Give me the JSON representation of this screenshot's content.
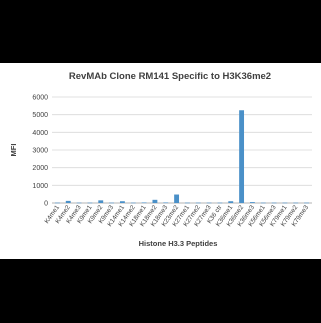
{
  "chart_data": {
    "type": "bar",
    "title": "RevMAb Clone RM141 Specific to H3K36me2",
    "xlabel": "Histone H3.3 Peptides",
    "ylabel": "MFI",
    "ylim": [
      0,
      6000
    ],
    "yticks": [
      0,
      1000,
      2000,
      3000,
      4000,
      5000,
      6000
    ],
    "grid": true,
    "legend": "none",
    "bar_color": "#4a90c8",
    "categories": [
      "K4me1",
      "K4me2",
      "K4me3",
      "K9me1",
      "K9me2",
      "K9me3",
      "K14me1",
      "K14me2",
      "K18me1",
      "K18me2",
      "K18me3",
      "K23me2",
      "K27me1",
      "K27me2",
      "K27me3",
      "K36 ctr",
      "K36me1",
      "K36me2",
      "K36me3",
      "K56me1",
      "K56me3",
      "K79me1",
      "K79me2",
      "K79me3"
    ],
    "values": [
      20,
      120,
      20,
      20,
      150,
      20,
      100,
      20,
      30,
      180,
      30,
      480,
      20,
      20,
      20,
      20,
      100,
      5250,
      50,
      20,
      20,
      20,
      20,
      20
    ]
  }
}
